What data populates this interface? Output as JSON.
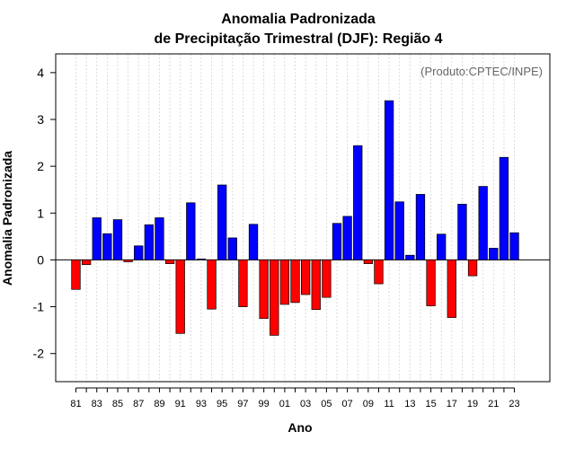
{
  "chart_data": {
    "type": "bar",
    "title": "Anomalia Padronizada",
    "subtitle": "de Precipitação Trimestral (DJF): Região 4",
    "xlabel": "Ano",
    "ylabel": "Anomalia Padronizada",
    "annotation": "(Produto:CPTEC/INPE)",
    "ylim": [
      -2.6,
      4.4
    ],
    "yticks": [
      -2,
      -1,
      0,
      1,
      2,
      3,
      4
    ],
    "ytick_labels": [
      "-2",
      "-1",
      "0",
      "1",
      "2",
      "3",
      "4"
    ],
    "xtick_labels": [
      "81",
      "83",
      "85",
      "87",
      "89",
      "91",
      "93",
      "95",
      "97",
      "99",
      "01",
      "03",
      "05",
      "07",
      "09",
      "11",
      "13",
      "15",
      "17",
      "19",
      "21",
      "23"
    ],
    "categories": [
      "81",
      "82",
      "83",
      "84",
      "85",
      "86",
      "87",
      "88",
      "89",
      "90",
      "91",
      "92",
      "93",
      "94",
      "95",
      "96",
      "97",
      "98",
      "99",
      "00",
      "01",
      "02",
      "03",
      "04",
      "05",
      "06",
      "07",
      "08",
      "09",
      "10",
      "11",
      "12",
      "13",
      "14",
      "15",
      "16",
      "17",
      "18",
      "19",
      "20",
      "21",
      "22",
      "23"
    ],
    "values": [
      -0.63,
      -0.1,
      0.9,
      0.56,
      0.86,
      -0.04,
      0.3,
      0.75,
      0.9,
      -0.08,
      -1.57,
      1.22,
      0.02,
      -1.05,
      1.6,
      0.47,
      -1.0,
      0.76,
      -1.25,
      -1.61,
      -0.95,
      -0.91,
      -0.74,
      -1.06,
      -0.8,
      0.78,
      0.93,
      2.44,
      -0.08,
      -0.51,
      3.4,
      1.24,
      0.1,
      1.4,
      -0.98,
      0.55,
      -1.23,
      1.19,
      -0.34,
      1.57,
      0.25,
      2.19,
      0.58
    ],
    "grid": true,
    "colors": {
      "positive": "#0000ff",
      "negative": "#ff0000",
      "zero_line": "#000000",
      "grid": "#d3d3d3"
    }
  }
}
